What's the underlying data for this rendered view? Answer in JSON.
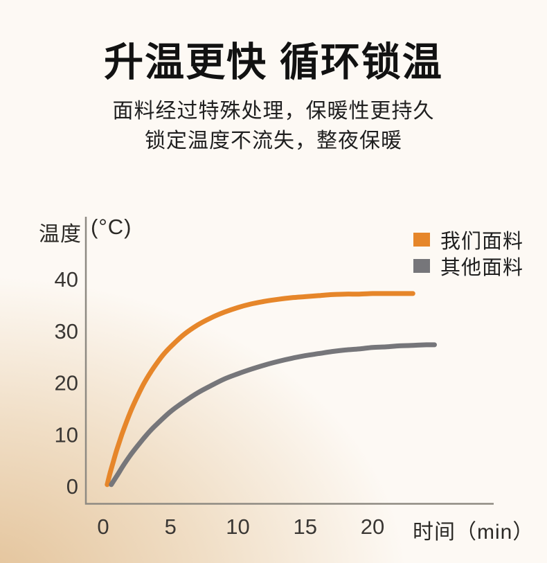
{
  "header": {
    "title": "升温更快 循环锁温",
    "subtitle_line1": "面料经过特殊处理，保暖性更持久",
    "subtitle_line2": "锁定温度不流失，整夜保暖"
  },
  "colors": {
    "background_top": "#FDF9F4",
    "background_glow": "#E3C298",
    "axis": "#8E8A82",
    "tick_text": "#3A3734",
    "our_fabric": "#E6862A",
    "other_fabric": "#76767A"
  },
  "chart_data": {
    "type": "line",
    "title": "",
    "ylabel": "温度",
    "y_unit": "(°C)",
    "xlabel": "时间（min）",
    "y_ticks": [
      0,
      10,
      20,
      30,
      40
    ],
    "x_ticks": [
      0,
      5,
      10,
      15,
      20
    ],
    "xlim": [
      -1.3,
      29
    ],
    "ylim": [
      -3.5,
      43
    ],
    "grid": false,
    "legend_position": "top-right",
    "series": [
      {
        "name": "我们面料",
        "color": "#E6862A",
        "points": [
          [
            0.3,
            0.3
          ],
          [
            0.5,
            2.4
          ],
          [
            0.75,
            4.7
          ],
          [
            1,
            6.9
          ],
          [
            1.25,
            8.9
          ],
          [
            1.5,
            10.8
          ],
          [
            2,
            14.2
          ],
          [
            2.5,
            17.1
          ],
          [
            3,
            19.7
          ],
          [
            3.5,
            21.9
          ],
          [
            4,
            23.8
          ],
          [
            4.5,
            25.5
          ],
          [
            5,
            26.9
          ],
          [
            6,
            29.3
          ],
          [
            7,
            31.1
          ],
          [
            8,
            32.5
          ],
          [
            9,
            33.6
          ],
          [
            10,
            34.5
          ],
          [
            11,
            35.2
          ],
          [
            12,
            35.7
          ],
          [
            13,
            36.1
          ],
          [
            14,
            36.4
          ],
          [
            15,
            36.6
          ],
          [
            16,
            36.8
          ],
          [
            17,
            37.0
          ],
          [
            18,
            37.1
          ],
          [
            19,
            37.1
          ],
          [
            20,
            37.2
          ],
          [
            21,
            37.2
          ],
          [
            22,
            37.2
          ],
          [
            23,
            37.2
          ]
        ]
      },
      {
        "name": "其他面料",
        "color": "#76767A",
        "points": [
          [
            0.6,
            0.3
          ],
          [
            1,
            1.9
          ],
          [
            1.5,
            4.0
          ],
          [
            2,
            5.9
          ],
          [
            2.5,
            7.6
          ],
          [
            3,
            9.2
          ],
          [
            3.5,
            10.7
          ],
          [
            4,
            12.0
          ],
          [
            5,
            14.4
          ],
          [
            6,
            16.3
          ],
          [
            7,
            18.0
          ],
          [
            8,
            19.4
          ],
          [
            9,
            20.7
          ],
          [
            10,
            21.7
          ],
          [
            11,
            22.6
          ],
          [
            12,
            23.4
          ],
          [
            13,
            24.1
          ],
          [
            14,
            24.7
          ],
          [
            15,
            25.2
          ],
          [
            16,
            25.6
          ],
          [
            17,
            26.0
          ],
          [
            18,
            26.3
          ],
          [
            19,
            26.5
          ],
          [
            20,
            26.8
          ],
          [
            21,
            26.9
          ],
          [
            22,
            27.1
          ],
          [
            23,
            27.2
          ],
          [
            24,
            27.3
          ],
          [
            24.6,
            27.3
          ]
        ]
      }
    ]
  }
}
